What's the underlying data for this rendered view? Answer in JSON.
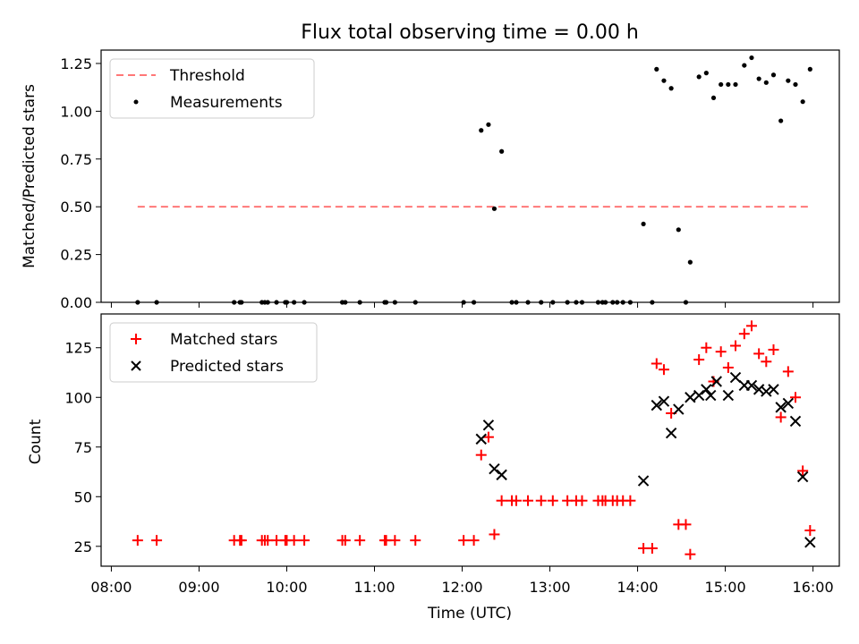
{
  "chart_data": [
    {
      "type": "scatter",
      "title": "Flux total observing time = 0.00 h",
      "xlabel": "",
      "ylabel": "Matched/Predicted stars",
      "xlim": [
        "07:53",
        "16:18"
      ],
      "ylim": [
        0,
        1.32
      ],
      "yticks": [
        "0.00",
        "0.25",
        "0.50",
        "0.75",
        "1.00",
        "1.25"
      ],
      "xtick_values": [
        "08:00",
        "09:00",
        "10:00",
        "11:00",
        "12:00",
        "13:00",
        "14:00",
        "15:00",
        "16:00"
      ],
      "legend": {
        "position": "upper-left",
        "entries": [
          "Threshold",
          "Measurements"
        ]
      },
      "grid": false,
      "threshold": {
        "name": "Threshold",
        "value": 0.5,
        "x_start": "08:18",
        "x_end": "15:58",
        "color": "#ff7777",
        "style": "dashed"
      },
      "series": [
        {
          "name": "Measurements",
          "color": "#000000",
          "points": [
            [
              "08:18",
              0
            ],
            [
              "08:31",
              0
            ],
            [
              "09:24",
              0
            ],
            [
              "09:28",
              0
            ],
            [
              "09:29",
              0
            ],
            [
              "09:43",
              0
            ],
            [
              "09:45",
              0
            ],
            [
              "09:47",
              0
            ],
            [
              "09:53",
              0
            ],
            [
              "09:59",
              0
            ],
            [
              "10:00",
              0
            ],
            [
              "10:05",
              0
            ],
            [
              "10:12",
              0
            ],
            [
              "10:38",
              0
            ],
            [
              "10:40",
              0
            ],
            [
              "10:50",
              0
            ],
            [
              "11:07",
              0
            ],
            [
              "11:08",
              0
            ],
            [
              "11:14",
              0
            ],
            [
              "11:28",
              0
            ],
            [
              "12:01",
              0
            ],
            [
              "12:08",
              0
            ],
            [
              "12:13",
              0.9
            ],
            [
              "12:18",
              0.93
            ],
            [
              "12:22",
              0.49
            ],
            [
              "12:27",
              0.79
            ],
            [
              "12:34",
              0
            ],
            [
              "12:37",
              0
            ],
            [
              "12:45",
              0
            ],
            [
              "12:54",
              0
            ],
            [
              "13:02",
              0
            ],
            [
              "13:12",
              0
            ],
            [
              "13:18",
              0
            ],
            [
              "13:22",
              0
            ],
            [
              "13:33",
              0
            ],
            [
              "13:36",
              0
            ],
            [
              "13:38",
              0
            ],
            [
              "13:43",
              0
            ],
            [
              "13:46",
              0
            ],
            [
              "13:50",
              0
            ],
            [
              "13:55",
              0
            ],
            [
              "14:04",
              0.41
            ],
            [
              "14:10",
              0
            ],
            [
              "14:13",
              1.22
            ],
            [
              "14:18",
              1.16
            ],
            [
              "14:23",
              1.12
            ],
            [
              "14:28",
              0.38
            ],
            [
              "14:33",
              0
            ],
            [
              "14:36",
              0.21
            ],
            [
              "14:42",
              1.18
            ],
            [
              "14:47",
              1.2
            ],
            [
              "14:52",
              1.07
            ],
            [
              "14:57",
              1.14
            ],
            [
              "15:02",
              1.14
            ],
            [
              "15:07",
              1.14
            ],
            [
              "15:13",
              1.24
            ],
            [
              "15:18",
              1.28
            ],
            [
              "15:23",
              1.17
            ],
            [
              "15:28",
              1.15
            ],
            [
              "15:33",
              1.19
            ],
            [
              "15:38",
              0.95
            ],
            [
              "15:43",
              1.16
            ],
            [
              "15:48",
              1.14
            ],
            [
              "15:53",
              1.05
            ],
            [
              "15:58",
              1.22
            ]
          ]
        }
      ]
    },
    {
      "type": "scatter",
      "title": "",
      "xlabel": "Time (UTC)",
      "ylabel": "Count",
      "xlim": [
        "07:53",
        "16:18"
      ],
      "ylim": [
        15,
        142
      ],
      "yticks": [
        "25",
        "50",
        "75",
        "100",
        "125"
      ],
      "xticks": [
        "08:00",
        "09:00",
        "10:00",
        "11:00",
        "12:00",
        "13:00",
        "14:00",
        "15:00",
        "16:00"
      ],
      "legend": {
        "position": "upper-left",
        "entries": [
          "Matched stars",
          "Predicted stars"
        ]
      },
      "grid": false,
      "series": [
        {
          "name": "Matched stars",
          "marker": "+",
          "color": "#ff0000",
          "points": [
            [
              "08:18",
              28
            ],
            [
              "08:31",
              28
            ],
            [
              "09:24",
              28
            ],
            [
              "09:28",
              28
            ],
            [
              "09:29",
              28
            ],
            [
              "09:43",
              28
            ],
            [
              "09:45",
              28
            ],
            [
              "09:47",
              28
            ],
            [
              "09:53",
              28
            ],
            [
              "09:59",
              28
            ],
            [
              "10:00",
              28
            ],
            [
              "10:05",
              28
            ],
            [
              "10:12",
              28
            ],
            [
              "10:38",
              28
            ],
            [
              "10:40",
              28
            ],
            [
              "10:50",
              28
            ],
            [
              "11:07",
              28
            ],
            [
              "11:08",
              28
            ],
            [
              "11:14",
              28
            ],
            [
              "11:28",
              28
            ],
            [
              "12:01",
              28
            ],
            [
              "12:08",
              28
            ],
            [
              "12:13",
              71
            ],
            [
              "12:18",
              80
            ],
            [
              "12:22",
              31
            ],
            [
              "12:27",
              48
            ],
            [
              "12:34",
              48
            ],
            [
              "12:37",
              48
            ],
            [
              "12:45",
              48
            ],
            [
              "12:54",
              48
            ],
            [
              "13:02",
              48
            ],
            [
              "13:12",
              48
            ],
            [
              "13:18",
              48
            ],
            [
              "13:22",
              48
            ],
            [
              "13:33",
              48
            ],
            [
              "13:36",
              48
            ],
            [
              "13:38",
              48
            ],
            [
              "13:43",
              48
            ],
            [
              "13:46",
              48
            ],
            [
              "13:50",
              48
            ],
            [
              "13:55",
              48
            ],
            [
              "14:04",
              24
            ],
            [
              "14:10",
              24
            ],
            [
              "14:13",
              117
            ],
            [
              "14:18",
              114
            ],
            [
              "14:23",
              92
            ],
            [
              "14:28",
              36
            ],
            [
              "14:33",
              36
            ],
            [
              "14:36",
              21
            ],
            [
              "14:42",
              119
            ],
            [
              "14:47",
              125
            ],
            [
              "14:52",
              108
            ],
            [
              "14:57",
              123
            ],
            [
              "15:02",
              115
            ],
            [
              "15:07",
              126
            ],
            [
              "15:13",
              132
            ],
            [
              "15:18",
              136
            ],
            [
              "15:23",
              122
            ],
            [
              "15:28",
              118
            ],
            [
              "15:33",
              124
            ],
            [
              "15:38",
              90
            ],
            [
              "15:43",
              113
            ],
            [
              "15:48",
              100
            ],
            [
              "15:53",
              63
            ],
            [
              "15:58",
              33
            ]
          ]
        },
        {
          "name": "Predicted stars",
          "marker": "x",
          "color": "#000000",
          "points": [
            [
              "12:13",
              79
            ],
            [
              "12:18",
              86
            ],
            [
              "12:22",
              64
            ],
            [
              "12:27",
              61
            ],
            [
              "14:04",
              58
            ],
            [
              "14:13",
              96
            ],
            [
              "14:18",
              98
            ],
            [
              "14:23",
              82
            ],
            [
              "14:28",
              94
            ],
            [
              "14:36",
              100
            ],
            [
              "14:42",
              101
            ],
            [
              "14:47",
              104
            ],
            [
              "14:50",
              101
            ],
            [
              "14:54",
              108
            ],
            [
              "15:02",
              101
            ],
            [
              "15:07",
              110
            ],
            [
              "15:13",
              106
            ],
            [
              "15:18",
              106
            ],
            [
              "15:23",
              104
            ],
            [
              "15:28",
              103
            ],
            [
              "15:33",
              104
            ],
            [
              "15:38",
              95
            ],
            [
              "15:43",
              97
            ],
            [
              "15:48",
              88
            ],
            [
              "15:53",
              60
            ],
            [
              "15:58",
              27
            ]
          ]
        }
      ]
    }
  ]
}
